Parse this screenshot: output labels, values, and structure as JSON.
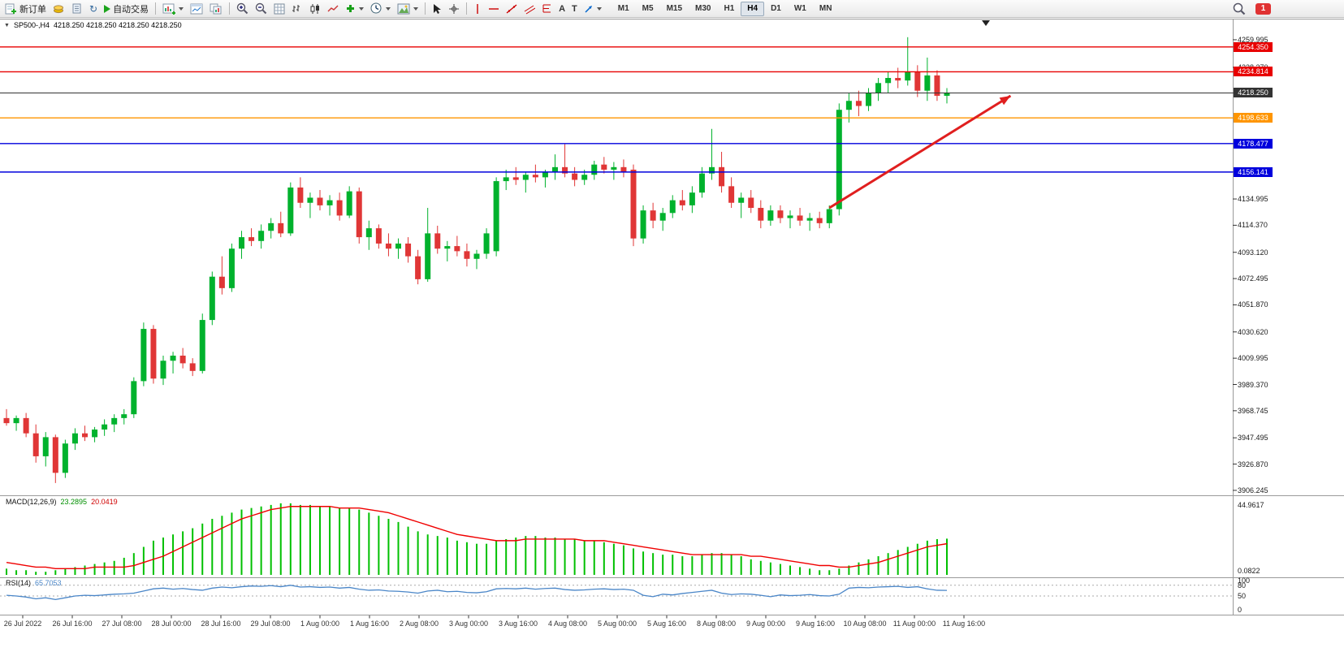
{
  "window": {
    "symbol_label": "SP500-,H4",
    "ohlc_label": "4218.250 4218.250 4218.250 4218.250",
    "notification_count": "1"
  },
  "icons": {
    "one_click_toggle": "▼",
    "refresh_glyph": "↻"
  },
  "toolbar": {
    "new_order": "新订单",
    "algo_trading": "自动交易",
    "text_tool": "A",
    "label_tool": "T",
    "timeframes": [
      "M1",
      "M5",
      "M15",
      "M30",
      "H1",
      "H4",
      "D1",
      "W1",
      "MN"
    ],
    "active_timeframe": "H4",
    "icon_names": [
      "new-order-icon",
      "gold-coins-icon",
      "files-icon",
      "refresh-icon",
      "algo-trading-play-icon",
      "new-chart-icon",
      "chart-window-icon",
      "chart-profiles-icon",
      "zoom-in-icon",
      "zoom-out-icon",
      "grid-icon",
      "bars-chart-icon",
      "candlestick-chart-icon",
      "line-chart-icon",
      "indicators-add-icon",
      "periods-clock-icon",
      "templates-icon",
      "cursor-icon",
      "crosshair-icon",
      "vertical-line-icon",
      "horizontal-line-icon",
      "trendline-icon",
      "equidistant-channel-icon",
      "fibonacci-icon",
      "text-icon",
      "text-label-icon",
      "shapes-arrow-icon",
      "search-icon"
    ]
  },
  "chart_data": {
    "type": "candlestick",
    "title": "SP500-,H4",
    "timeframe": "H4",
    "up_color": "#00b22d",
    "down_color": "#e03636",
    "price_axis_labels": [
      "4259.995",
      "4238.370",
      "4134.995",
      "4114.370",
      "4093.120",
      "4072.495",
      "4051.870",
      "4030.620",
      "4009.995",
      "3989.370",
      "3968.745",
      "3947.495",
      "3926.870",
      "3906.245"
    ],
    "levels": [
      {
        "price": 4254.35,
        "color": "#e80000",
        "type": "resistance-line"
      },
      {
        "price": 4234.814,
        "color": "#e80000",
        "type": "resistance-line"
      },
      {
        "price": 4218.25,
        "color": "#333333",
        "type": "current-price-line"
      },
      {
        "price": 4198.633,
        "color": "#ff9500",
        "type": "level-line"
      },
      {
        "price": 4178.477,
        "color": "#0000dd",
        "type": "support-line"
      },
      {
        "price": 4156.141,
        "color": "#0000dd",
        "type": "support-line"
      }
    ],
    "trend_arrow": {
      "from_index": 84,
      "from_price": 4128,
      "to_index": 102.5,
      "to_price": 4216,
      "color": "#e01f1f"
    },
    "candles": [
      [
        3963,
        3970,
        3957,
        3959
      ],
      [
        3959,
        3965,
        3953,
        3963
      ],
      [
        3963,
        3967,
        3948,
        3951
      ],
      [
        3951,
        3958,
        3928,
        3933
      ],
      [
        3933,
        3952,
        3925,
        3948
      ],
      [
        3948,
        3950,
        3912,
        3920
      ],
      [
        3920,
        3946,
        3916,
        3943
      ],
      [
        3943,
        3955,
        3938,
        3951
      ],
      [
        3951,
        3957,
        3945,
        3948
      ],
      [
        3948,
        3956,
        3944,
        3954
      ],
      [
        3954,
        3962,
        3949,
        3958
      ],
      [
        3958,
        3966,
        3952,
        3963
      ],
      [
        3963,
        3970,
        3958,
        3966
      ],
      [
        3966,
        3995,
        3963,
        3992
      ],
      [
        3992,
        4038,
        3988,
        4033
      ],
      [
        4033,
        4036,
        3990,
        3994
      ],
      [
        3994,
        4012,
        3989,
        4008
      ],
      [
        4008,
        4015,
        3998,
        4012
      ],
      [
        4012,
        4018,
        4002,
        4006
      ],
      [
        4006,
        4010,
        3996,
        4000
      ],
      [
        4000,
        4045,
        3998,
        4040
      ],
      [
        4040,
        4078,
        4036,
        4074
      ],
      [
        4074,
        4090,
        4060,
        4065
      ],
      [
        4065,
        4100,
        4062,
        4096
      ],
      [
        4096,
        4110,
        4088,
        4105
      ],
      [
        4105,
        4112,
        4098,
        4102
      ],
      [
        4102,
        4115,
        4096,
        4110
      ],
      [
        4110,
        4120,
        4104,
        4116
      ],
      [
        4116,
        4125,
        4105,
        4108
      ],
      [
        4108,
        4148,
        4106,
        4144
      ],
      [
        4144,
        4152,
        4128,
        4132
      ],
      [
        4132,
        4140,
        4120,
        4136
      ],
      [
        4136,
        4142,
        4126,
        4130
      ],
      [
        4130,
        4138,
        4122,
        4134
      ],
      [
        4134,
        4140,
        4118,
        4122
      ],
      [
        4122,
        4145,
        4120,
        4141
      ],
      [
        4141,
        4144,
        4100,
        4105
      ],
      [
        4105,
        4118,
        4095,
        4112
      ],
      [
        4112,
        4115,
        4096,
        4100
      ],
      [
        4100,
        4108,
        4090,
        4096
      ],
      [
        4096,
        4104,
        4088,
        4100
      ],
      [
        4100,
        4105,
        4085,
        4090
      ],
      [
        4090,
        4095,
        4068,
        4072
      ],
      [
        4072,
        4128,
        4070,
        4108
      ],
      [
        4108,
        4114,
        4092,
        4096
      ],
      [
        4096,
        4102,
        4086,
        4098
      ],
      [
        4098,
        4106,
        4090,
        4094
      ],
      [
        4094,
        4100,
        4082,
        4088
      ],
      [
        4088,
        4095,
        4080,
        4092
      ],
      [
        4092,
        4112,
        4088,
        4108
      ],
      [
        4094,
        4152,
        4090,
        4149
      ],
      [
        4149,
        4158,
        4142,
        4152
      ],
      [
        4152,
        4160,
        4146,
        4150
      ],
      [
        4150,
        4156,
        4140,
        4154
      ],
      [
        4154,
        4162,
        4148,
        4152
      ],
      [
        4152,
        4158,
        4144,
        4156
      ],
      [
        4156,
        4170,
        4150,
        4160
      ],
      [
        4160,
        4178,
        4152,
        4155
      ],
      [
        4155,
        4160,
        4145,
        4150
      ],
      [
        4150,
        4158,
        4146,
        4154
      ],
      [
        4154,
        4165,
        4150,
        4162
      ],
      [
        4162,
        4168,
        4155,
        4158
      ],
      [
        4158,
        4164,
        4150,
        4160
      ],
      [
        4160,
        4166,
        4152,
        4156
      ],
      [
        4158,
        4162,
        4098,
        4104
      ],
      [
        4104,
        4130,
        4100,
        4126
      ],
      [
        4126,
        4132,
        4112,
        4118
      ],
      [
        4118,
        4128,
        4110,
        4124
      ],
      [
        4124,
        4138,
        4120,
        4134
      ],
      [
        4134,
        4142,
        4126,
        4130
      ],
      [
        4130,
        4145,
        4124,
        4140
      ],
      [
        4140,
        4160,
        4136,
        4155
      ],
      [
        4155,
        4190,
        4150,
        4160
      ],
      [
        4160,
        4172,
        4140,
        4145
      ],
      [
        4145,
        4152,
        4128,
        4132
      ],
      [
        4132,
        4140,
        4120,
        4136
      ],
      [
        4136,
        4142,
        4124,
        4128
      ],
      [
        4128,
        4134,
        4112,
        4118
      ],
      [
        4118,
        4130,
        4114,
        4126
      ],
      [
        4126,
        4130,
        4116,
        4120
      ],
      [
        4120,
        4126,
        4112,
        4122
      ],
      [
        4122,
        4128,
        4114,
        4118
      ],
      [
        4118,
        4124,
        4110,
        4120
      ],
      [
        4120,
        4125,
        4112,
        4116
      ],
      [
        4116,
        4130,
        4112,
        4127
      ],
      [
        4127,
        4210,
        4122,
        4205
      ],
      [
        4205,
        4218,
        4195,
        4212
      ],
      [
        4212,
        4220,
        4200,
        4208
      ],
      [
        4208,
        4222,
        4204,
        4218
      ],
      [
        4218,
        4230,
        4212,
        4226
      ],
      [
        4226,
        4235,
        4218,
        4230
      ],
      [
        4230,
        4238,
        4222,
        4228
      ],
      [
        4228,
        4262,
        4224,
        4235
      ],
      [
        4235,
        4240,
        4215,
        4220
      ],
      [
        4220,
        4246,
        4212,
        4232
      ],
      [
        4232,
        4236,
        4212,
        4216
      ],
      [
        4216,
        4222,
        4210,
        4218
      ]
    ],
    "time_labels": [
      "26 Jul 2022",
      "26 Jul 16:00",
      "27 Jul 08:00",
      "28 Jul 00:00",
      "28 Jul 16:00",
      "29 Jul 08:00",
      "1 Aug 00:00",
      "1 Aug 16:00",
      "2 Aug 08:00",
      "3 Aug 00:00",
      "3 Aug 16:00",
      "4 Aug 08:00",
      "5 Aug 00:00",
      "5 Aug 16:00",
      "8 Aug 08:00",
      "9 Aug 00:00",
      "9 Aug 16:00",
      "10 Aug 08:00",
      "11 Aug 00:00",
      "11 Aug 16:00"
    ],
    "macd": {
      "label": "MACD(12,26,9)",
      "value_main": "23.2895",
      "value_signal": "20.0419",
      "axis_max": "44.9617",
      "axis_min": "0.0822",
      "histogram_color": "#00c000",
      "signal_color": "#f00000",
      "histogram": [
        4,
        3,
        3,
        2,
        2,
        3,
        4,
        5,
        6,
        7,
        8,
        9,
        11,
        14,
        18,
        22,
        24,
        26,
        28,
        30,
        33,
        36,
        38,
        40,
        42,
        43,
        44,
        45,
        46,
        46,
        45,
        45,
        44,
        44,
        43,
        43,
        42,
        40,
        38,
        36,
        34,
        31,
        28,
        26,
        25,
        24,
        22,
        21,
        20,
        20,
        22,
        23,
        24,
        25,
        25,
        24,
        24,
        23,
        23,
        22,
        22,
        21,
        20,
        19,
        17,
        15,
        14,
        13,
        13,
        12,
        12,
        13,
        14,
        14,
        13,
        12,
        10,
        9,
        8,
        7,
        6,
        5,
        4,
        3,
        3,
        4,
        6,
        8,
        10,
        12,
        14,
        16,
        18,
        20,
        22,
        23,
        23.29
      ],
      "signal": [
        8,
        7,
        6,
        5,
        5,
        4,
        4,
        4,
        4,
        5,
        5,
        5,
        5,
        6,
        8,
        10,
        12,
        15,
        18,
        21,
        24,
        27,
        30,
        33,
        36,
        38,
        40,
        42,
        43,
        44,
        44,
        44,
        44,
        44,
        43,
        43,
        43,
        42,
        41,
        40,
        38,
        36,
        34,
        32,
        30,
        28,
        26,
        25,
        24,
        23,
        22,
        22,
        22,
        23,
        23,
        23,
        23,
        23,
        23,
        22,
        22,
        22,
        21,
        20,
        19,
        18,
        17,
        16,
        15,
        14,
        13,
        13,
        13,
        13,
        13,
        13,
        12,
        12,
        11,
        10,
        9,
        8,
        7,
        6,
        6,
        5,
        5,
        6,
        7,
        8,
        10,
        12,
        14,
        16,
        18,
        19,
        20.04
      ]
    },
    "rsi": {
      "label": "RSI(14)",
      "value": "65.7053",
      "axis_labels": [
        "100",
        "80",
        "50",
        "0"
      ],
      "level_lines": [
        80,
        50
      ],
      "line_color": "#4a86c8",
      "values": [
        52,
        50,
        47,
        42,
        45,
        40,
        45,
        50,
        52,
        51,
        53,
        55,
        56,
        58,
        64,
        70,
        72,
        69,
        71,
        68,
        66,
        72,
        75,
        73,
        76,
        78,
        77,
        79,
        76,
        80,
        75,
        76,
        74,
        75,
        72,
        74,
        69,
        66,
        67,
        64,
        63,
        61,
        58,
        64,
        66,
        62,
        63,
        60,
        59,
        62,
        70,
        71,
        70,
        72,
        69,
        71,
        72,
        68,
        66,
        67,
        69,
        70,
        68,
        69,
        66,
        52,
        48,
        55,
        53,
        57,
        60,
        63,
        66,
        58,
        54,
        56,
        55,
        52,
        48,
        53,
        51,
        52,
        54,
        51,
        50,
        55,
        72,
        74,
        73,
        75,
        76,
        77,
        74,
        76,
        70,
        66,
        65.7
      ]
    }
  }
}
